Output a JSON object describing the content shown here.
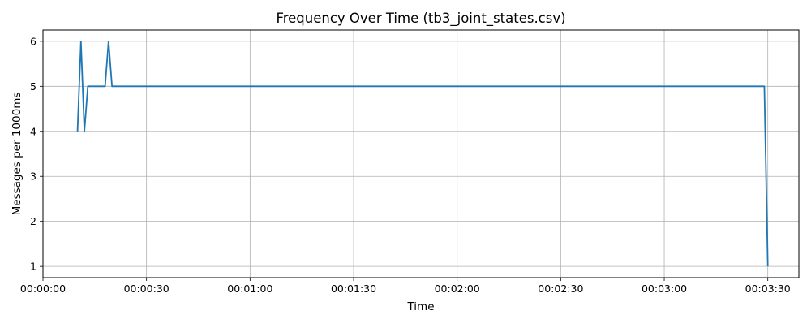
{
  "chart_data": {
    "type": "line",
    "title": "Frequency Over Time (tb3_joint_states.csv)",
    "xlabel": "Time",
    "ylabel": "Messages per 1000ms",
    "x_tick_labels": [
      "00:00:00",
      "00:00:30",
      "00:01:00",
      "00:01:30",
      "00:02:00",
      "00:02:30",
      "00:03:00",
      "00:03:30"
    ],
    "y_tick_labels": [
      "1",
      "2",
      "3",
      "4",
      "5",
      "6"
    ],
    "grid": true,
    "series_color": "#1f77b4",
    "series": [
      {
        "x": [
          "00:00:10",
          "00:00:11",
          "00:00:12",
          "00:00:13",
          "00:00:18",
          "00:00:19",
          "00:00:20",
          "00:03:29",
          "00:03:30"
        ],
        "values": [
          4,
          6,
          4,
          5,
          5,
          6,
          5,
          5,
          1
        ]
      }
    ]
  }
}
